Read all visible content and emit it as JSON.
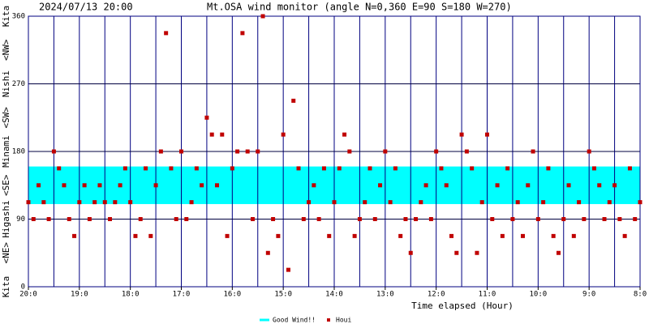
{
  "chart_data": {
    "type": "scatter",
    "timestamp": "2024/07/13 20:00",
    "title": "Mt.OSA wind monitor (angle N=0,360 E=90 S=180 W=270)",
    "x_label": "Time elapsed (Hour)",
    "y_labels": [
      {
        "value": 0,
        "label": "Kita"
      },
      {
        "value": 45,
        "label": "<NE>"
      },
      {
        "value": 90,
        "label": "Higashi"
      },
      {
        "value": 135,
        "label": "<SE>"
      },
      {
        "value": 180,
        "label": "Minami"
      },
      {
        "value": 225,
        "label": "<SW>"
      },
      {
        "value": 270,
        "label": "Nishi"
      },
      {
        "value": 315,
        "label": "<NW>"
      },
      {
        "value": 360,
        "label": "Kita"
      }
    ],
    "xlim": [
      0,
      12
    ],
    "ylim": [
      0,
      360
    ],
    "xticks": [
      {
        "value": 0,
        "label": "20:0"
      },
      {
        "value": 1,
        "label": "19:0"
      },
      {
        "value": 2,
        "label": "18:0"
      },
      {
        "value": 3,
        "label": "17:0"
      },
      {
        "value": 4,
        "label": "16:0"
      },
      {
        "value": 5,
        "label": "15:0"
      },
      {
        "value": 6,
        "label": "14:0"
      },
      {
        "value": 7,
        "label": "13:0"
      },
      {
        "value": 8,
        "label": "12:0"
      },
      {
        "value": 9,
        "label": "11:0"
      },
      {
        "value": 10,
        "label": "10:0"
      },
      {
        "value": 11,
        "label": "9:0"
      },
      {
        "value": 12,
        "label": "8:0"
      }
    ],
    "xgrid": [
      0.5,
      1.5,
      2.5,
      3.5,
      4.5,
      5.5,
      6.5,
      7.5,
      8.5,
      9.5,
      10.5,
      11.5
    ],
    "yticks": [
      0,
      90,
      180,
      270,
      360
    ],
    "grid": true,
    "band": {
      "name": "Good Wind!!",
      "color": "#00ffff",
      "range": [
        110,
        160
      ]
    },
    "series": [
      {
        "name": "Houi",
        "color": "#c00000",
        "x": [
          0,
          0.1,
          0.2,
          0.3,
          0.4,
          0.5,
          0.6,
          0.7,
          0.8,
          0.9,
          1,
          1.1,
          1.2,
          1.3,
          1.4,
          1.5,
          1.6,
          1.7,
          1.8,
          1.9,
          2,
          2.1,
          2.2,
          2.3,
          2.4,
          2.5,
          2.6,
          2.7,
          2.8,
          2.9,
          3,
          3.1,
          3.2,
          3.3,
          3.4,
          3.5,
          3.6,
          3.7,
          3.8,
          3.9,
          4,
          4.1,
          4.2,
          4.3,
          4.4,
          4.5,
          4.6,
          4.7,
          4.8,
          4.9,
          5,
          5.1,
          5.2,
          5.3,
          5.4,
          5.5,
          5.6,
          5.7,
          5.8,
          5.9,
          6,
          6.1,
          6.2,
          6.3,
          6.4,
          6.5,
          6.6,
          6.7,
          6.8,
          6.9,
          7,
          7.1,
          7.2,
          7.3,
          7.4,
          7.5,
          7.6,
          7.7,
          7.8,
          7.9,
          8,
          8.1,
          8.2,
          8.3,
          8.4,
          8.5,
          8.6,
          8.7,
          8.8,
          8.9,
          9,
          9.1,
          9.2,
          9.3,
          9.4,
          9.5,
          9.6,
          9.7,
          9.8,
          9.9,
          10,
          10.1,
          10.2,
          10.3,
          10.4,
          10.5,
          10.6,
          10.7,
          10.8,
          10.9,
          11,
          11.1,
          11.2,
          11.3,
          11.4,
          11.5,
          11.6,
          11.7,
          11.8,
          11.9,
          12
        ],
        "values": [
          112.5,
          90,
          135,
          112.5,
          90,
          180,
          157.5,
          135,
          90,
          67.5,
          112.5,
          135,
          90,
          112.5,
          135,
          112.5,
          90,
          112.5,
          135,
          157.5,
          112.5,
          67.5,
          90,
          157.5,
          67.5,
          135,
          180,
          337.5,
          157.5,
          90,
          180,
          90,
          112.5,
          157.5,
          135,
          225,
          202.5,
          135,
          202.5,
          67.5,
          157.5,
          180,
          337.5,
          180,
          90,
          180,
          360,
          45,
          90,
          67.5,
          202.5,
          22.5,
          247.5,
          157.5,
          90,
          112.5,
          135,
          90,
          157.5,
          67.5,
          112.5,
          157.5,
          202.5,
          180,
          67.5,
          90,
          112.5,
          157.5,
          90,
          135,
          180,
          112.5,
          157.5,
          67.5,
          90,
          45,
          90,
          112.5,
          135,
          90,
          180,
          157.5,
          135,
          67.5,
          45,
          202.5,
          180,
          157.5,
          45,
          112.5,
          202.5,
          90,
          135,
          67.5,
          157.5,
          90,
          112.5,
          67.5,
          135,
          180,
          90,
          112.5,
          157.5,
          67.5,
          45,
          90,
          135,
          67.5,
          112.5,
          90,
          180,
          157.5,
          135,
          90,
          112.5,
          135,
          90,
          67.5,
          157.5,
          90,
          112.5
        ]
      }
    ]
  }
}
